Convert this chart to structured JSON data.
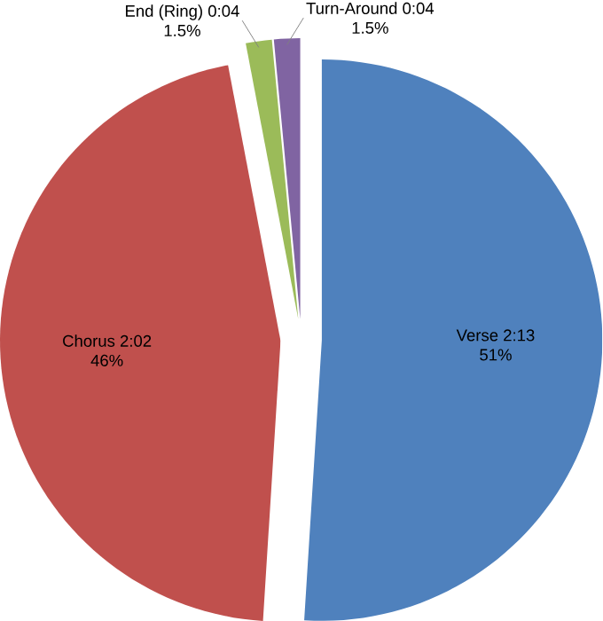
{
  "chart_data": {
    "type": "pie",
    "categories": [
      "Verse 2:13",
      "Chorus 2:02",
      "End (Ring) 0:04",
      "Turn-Around 0:04"
    ],
    "values": [
      51,
      46,
      1.5,
      1.5
    ],
    "value_labels": [
      "51%",
      "46%",
      "1.5%",
      "1.5%"
    ],
    "colors": [
      "#4f81bd",
      "#c0504d",
      "#9bbb59",
      "#8064a2"
    ]
  }
}
